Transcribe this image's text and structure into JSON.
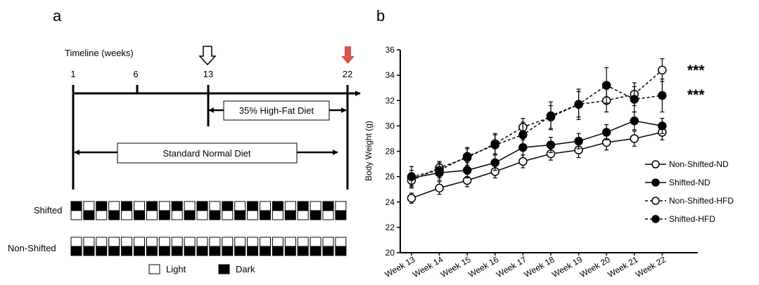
{
  "panels": {
    "a": {
      "label": "a",
      "timeline_title": "Timeline (weeks)",
      "timeline_ticks": [
        "1",
        "6",
        "13",
        "22"
      ],
      "hfd_label": "35% High-Fat Diet",
      "nd_label": "Standard Normal Diet",
      "rows": [
        "Shifted",
        "Non-Shifted"
      ],
      "legend": {
        "light": "Light",
        "dark": "Dark"
      },
      "markers": {
        "open_arrow_week": "13",
        "red_arrow_week": "22",
        "red_arrow_color": "#d9534f"
      },
      "cycle_count": 22
    },
    "b": {
      "label": "b"
    }
  },
  "chart_data": {
    "type": "line",
    "title": "",
    "xlabel": "",
    "ylabel": "Body Weight (g)",
    "categories": [
      "Week 13",
      "Week 14",
      "Week 15",
      "Week 16",
      "Week 17",
      "Week 18",
      "Week 19",
      "Week 20",
      "Week 21",
      "Week 22"
    ],
    "ylim": [
      20,
      36
    ],
    "yticks": [
      "20",
      "22",
      "24",
      "26",
      "28",
      "30",
      "32",
      "34",
      "36"
    ],
    "grid": false,
    "legend_position": "right",
    "series": [
      {
        "name": "Non-Shifted-ND",
        "marker": "open",
        "dash": false,
        "values": [
          24.3,
          25.1,
          25.7,
          26.4,
          27.2,
          27.8,
          28.1,
          28.7,
          29.0,
          29.5
        ],
        "err": [
          0.4,
          0.5,
          0.5,
          0.5,
          0.5,
          0.5,
          0.6,
          0.6,
          0.6,
          0.6
        ]
      },
      {
        "name": "Shifted-ND",
        "marker": "filled",
        "dash": false,
        "values": [
          25.9,
          26.3,
          26.5,
          27.1,
          28.3,
          28.5,
          28.8,
          29.5,
          30.4,
          30.0
        ],
        "err": [
          0.6,
          0.6,
          0.6,
          0.6,
          0.6,
          0.6,
          0.6,
          0.6,
          0.7,
          0.6
        ]
      },
      {
        "name": "Non-Shifted-HFD",
        "marker": "open",
        "dash": true,
        "values": [
          25.7,
          26.7,
          27.5,
          28.6,
          29.9,
          30.7,
          31.7,
          32.0,
          32.5,
          34.4
        ],
        "err": [
          0.6,
          0.5,
          0.7,
          0.8,
          0.7,
          0.9,
          1.0,
          0.9,
          0.9,
          0.9
        ]
      },
      {
        "name": "Shifted-HFD",
        "marker": "filled",
        "dash": true,
        "values": [
          26.0,
          26.5,
          27.6,
          28.5,
          29.3,
          30.8,
          31.7,
          33.2,
          32.1,
          32.4
        ],
        "err": [
          0.8,
          0.6,
          0.7,
          0.8,
          1.0,
          1.1,
          1.2,
          1.4,
          1.0,
          1.3
        ]
      }
    ],
    "annotations": [
      "***",
      "***"
    ]
  }
}
